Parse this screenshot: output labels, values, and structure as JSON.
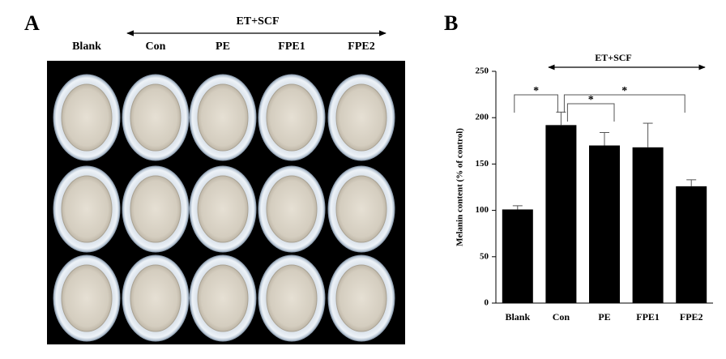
{
  "panel_a": {
    "label": "A",
    "group_label": "ET+SCF",
    "columns": [
      "Blank",
      "Con",
      "PE",
      "FPE1",
      "FPE2"
    ]
  },
  "chart_data": {
    "type": "bar",
    "panel_label": "B",
    "group_label": "ET+SCF",
    "y_label": "Melanin content (% of control)",
    "categories": [
      "Blank",
      "Con",
      "PE",
      "FPE1",
      "FPE2"
    ],
    "series": [
      {
        "color": "#000000",
        "values": [
          101,
          192,
          170,
          168,
          126
        ],
        "errors": [
          4,
          14,
          14,
          26,
          7
        ]
      }
    ],
    "ylim": [
      0,
      250
    ],
    "yticks": [
      0,
      50,
      100,
      150,
      200,
      250
    ],
    "significance": [
      "*",
      "*",
      "*"
    ]
  }
}
